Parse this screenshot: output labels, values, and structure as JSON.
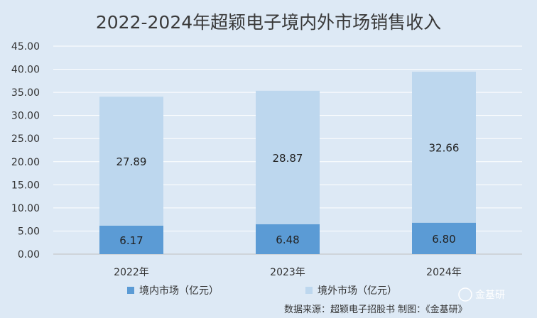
{
  "chart_data": {
    "type": "bar",
    "stacked": true,
    "title": "2022-2024年超颖电子境内外市场销售收入",
    "categories": [
      "2022年",
      "2023年",
      "2024年"
    ],
    "series": [
      {
        "name": "境内市场（亿元）",
        "values": [
          6.17,
          6.48,
          6.8
        ],
        "color": "#5b9bd5"
      },
      {
        "name": "境外市场（亿元）",
        "values": [
          27.89,
          28.87,
          32.66
        ],
        "color": "#bdd7ee"
      }
    ],
    "y_ticks": [
      "0.00",
      "5.00",
      "10.00",
      "15.00",
      "20.00",
      "25.00",
      "30.00",
      "35.00",
      "40.00",
      "45.00"
    ],
    "ylim": [
      0,
      45
    ],
    "grid": true,
    "legend_position": "bottom",
    "value_decimals": 2
  },
  "source_text": "数据来源：超颖电子招股书    制图：《金基研》",
  "watermark": "金基研"
}
